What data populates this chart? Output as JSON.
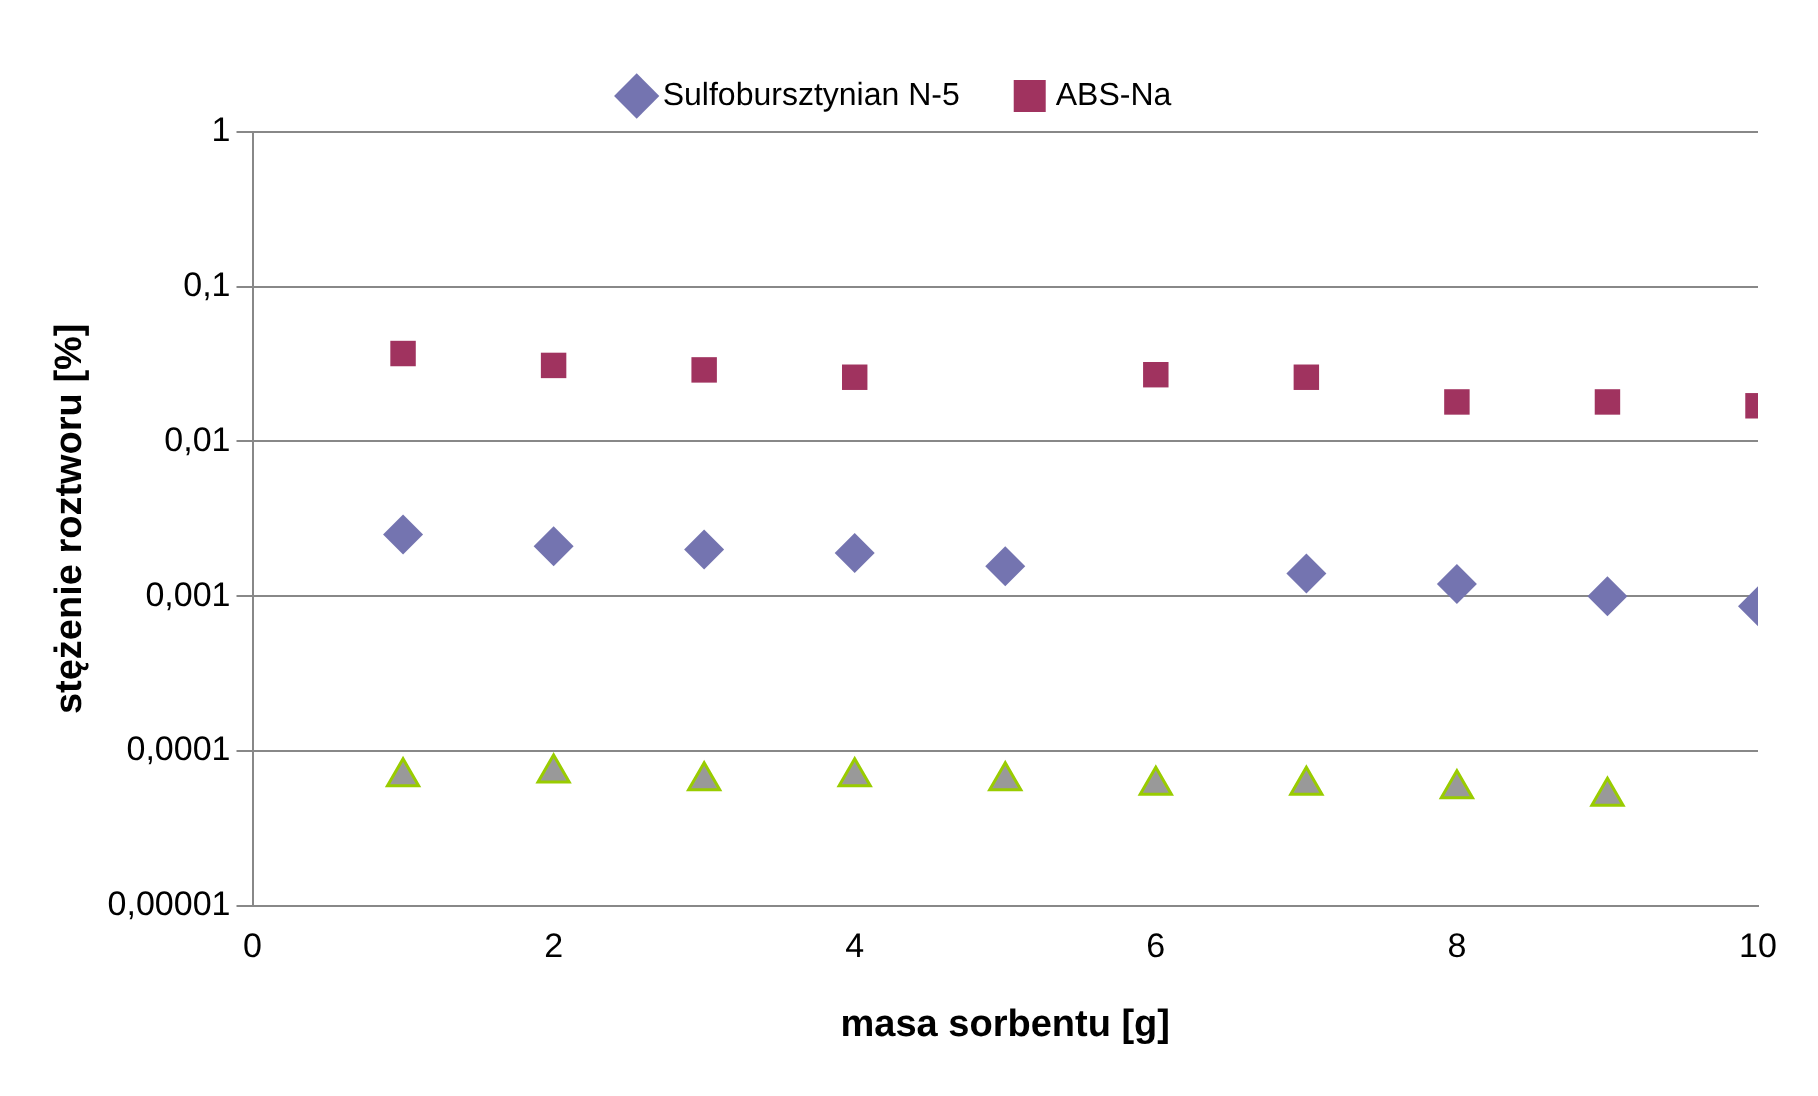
{
  "chart_data": {
    "type": "scatter",
    "xlabel": "masa sorbentu [g]",
    "ylabel": "stężenie roztworu [%]",
    "log": "y",
    "grid": "y",
    "legend": "top",
    "xlim": [
      0,
      10
    ],
    "xticks": [
      0,
      2,
      4,
      6,
      8,
      10
    ],
    "ylim": [
      1e-05,
      1
    ],
    "yticks": [
      {
        "value": 1e-05,
        "label": "0,00001"
      },
      {
        "value": 0.0001,
        "label": "0,0001"
      },
      {
        "value": 0.001,
        "label": "0,001"
      },
      {
        "value": 0.01,
        "label": "0,01"
      },
      {
        "value": 0.1,
        "label": "0,1"
      },
      {
        "value": 1,
        "label": "1"
      }
    ],
    "x": [
      1,
      2,
      3,
      4,
      5,
      6,
      7,
      8,
      9,
      10
    ],
    "series": [
      {
        "name": "Sulfobursztynian N-5",
        "color": "#7474b0",
        "marker": "diamond",
        "values": [
          0.0025,
          0.0021,
          0.002,
          0.0019,
          0.00156,
          null,
          0.0014,
          0.0012,
          0.001,
          0.00086
        ]
      },
      {
        "name": "ABS-Na",
        "color": "#a0335f",
        "marker": "square",
        "values": [
          0.037,
          0.031,
          0.029,
          0.026,
          null,
          0.027,
          0.026,
          0.018,
          0.018,
          0.017
        ]
      },
      {
        "color": "#999999",
        "marker": "triangle",
        "values": [
          6.8e-05,
          7.2e-05,
          6.4e-05,
          6.8e-05,
          6.4e-05,
          6e-05,
          6e-05,
          5.7e-05,
          5.1e-05,
          null
        ]
      }
    ]
  }
}
